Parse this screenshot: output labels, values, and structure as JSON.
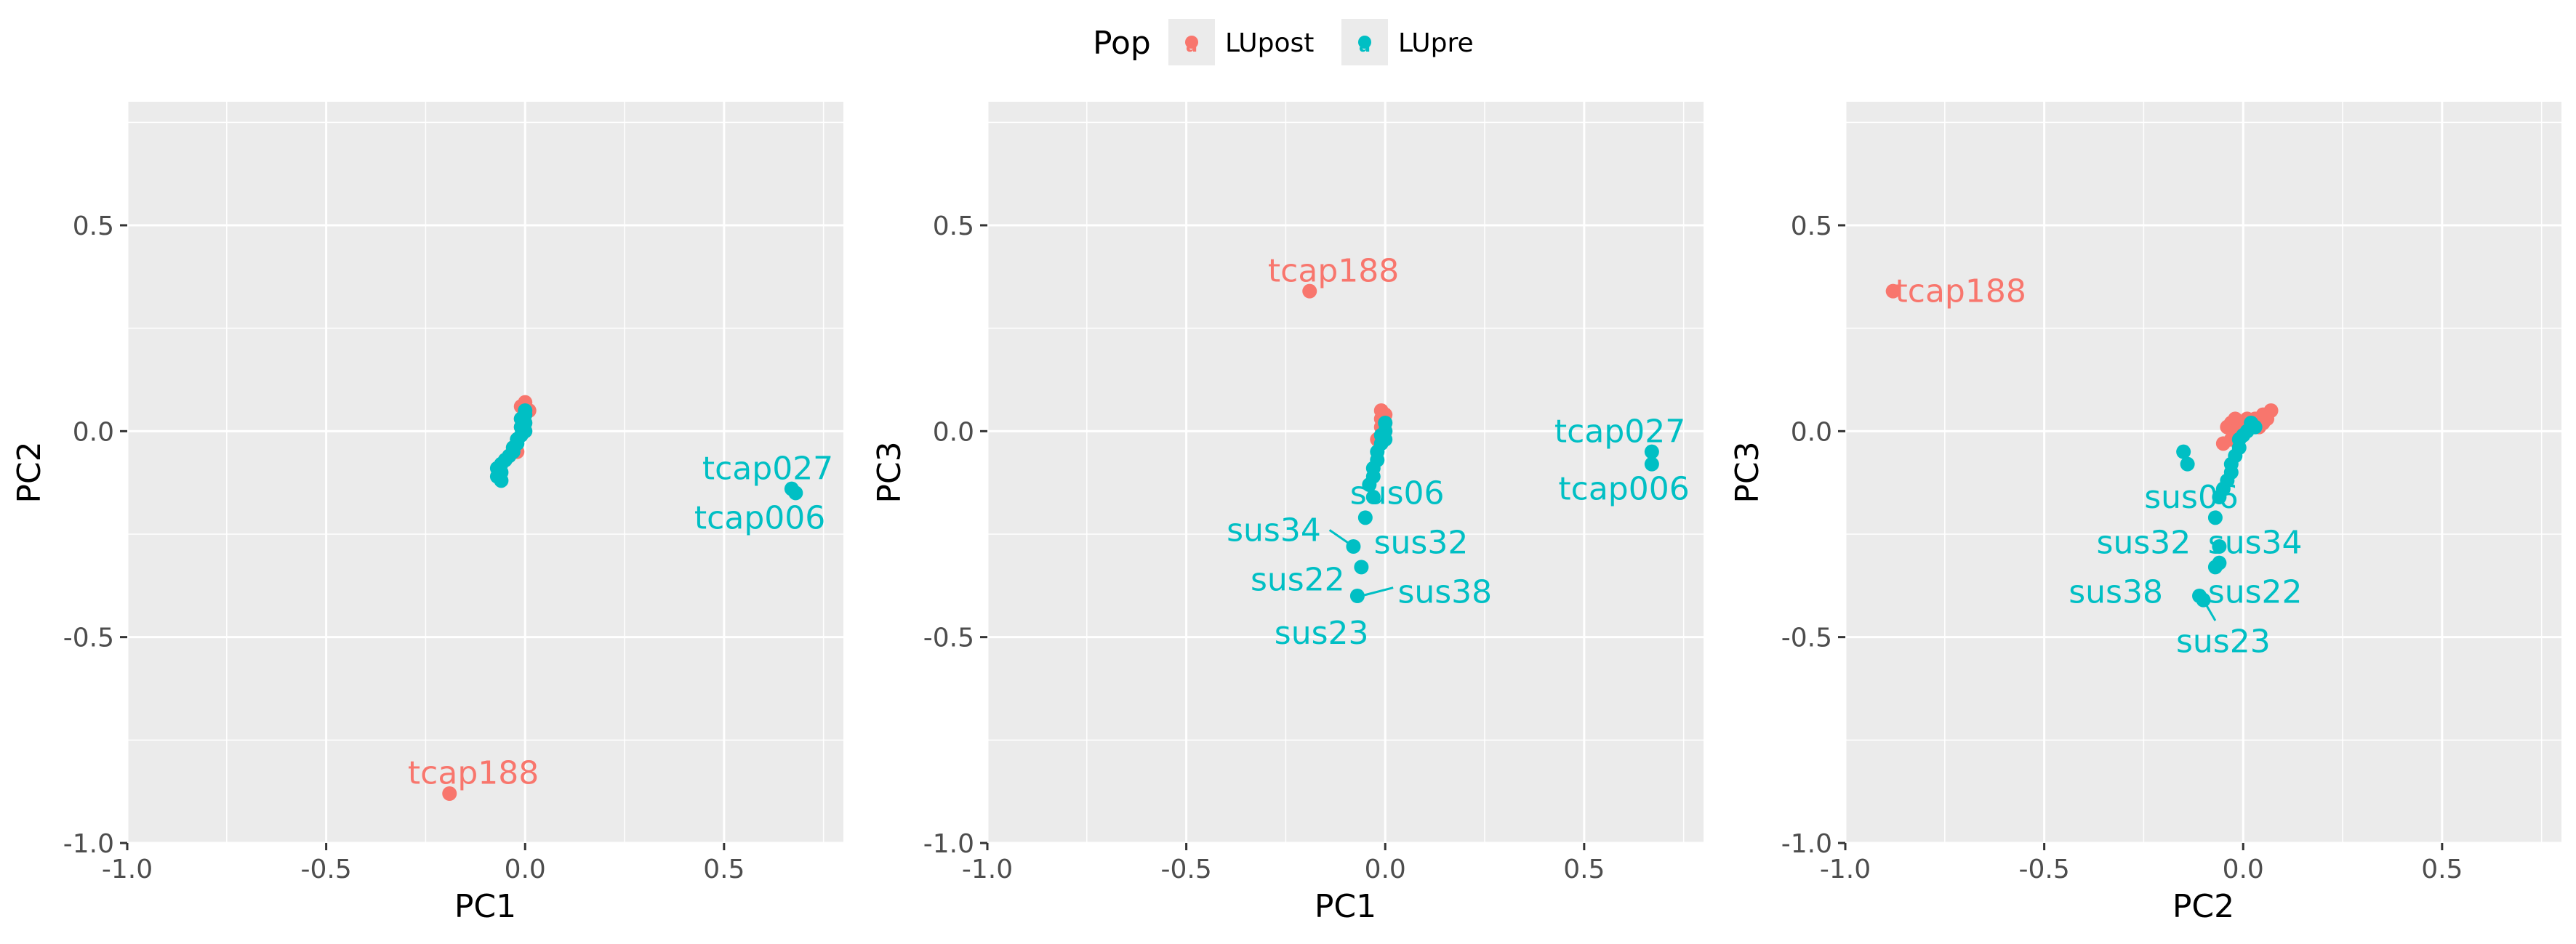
{
  "legend": {
    "title": "Pop",
    "entries": [
      {
        "name": "LUpost",
        "color": "#F8766D",
        "glyph": "a"
      },
      {
        "name": "LUpre",
        "color": "#00BFC4",
        "glyph": "a"
      }
    ],
    "placement": "top-center"
  },
  "chart_data": [
    {
      "type": "scatter",
      "xlabel": "PC1",
      "ylabel": "PC2",
      "xlim": [
        -1.0,
        0.8
      ],
      "ylim": [
        -1.0,
        0.8
      ],
      "xticks": [
        -1.0,
        -0.5,
        0.0,
        0.5
      ],
      "yticks": [
        -1.0,
        -0.5,
        0.0,
        0.5
      ],
      "tick_labels_x": [
        "-1.0",
        "-0.5",
        "0.0",
        "0.5"
      ],
      "tick_labels_y": [
        "-1.0",
        "-0.5",
        "0.0",
        "0.5"
      ],
      "grid": true,
      "series": [
        {
          "name": "LUpost",
          "color": "#F8766D",
          "points": [
            [
              -0.19,
              -0.88
            ],
            [
              0.0,
              0.07
            ],
            [
              -0.01,
              0.06
            ],
            [
              0.01,
              0.05
            ],
            [
              0.0,
              0.04
            ],
            [
              -0.01,
              0.03
            ],
            [
              0.0,
              0.02
            ],
            [
              -0.01,
              0.01
            ],
            [
              0.0,
              0.0
            ],
            [
              -0.02,
              -0.02
            ],
            [
              -0.03,
              -0.04
            ],
            [
              -0.02,
              -0.05
            ],
            [
              -0.04,
              -0.06
            ],
            [
              -0.05,
              -0.07
            ]
          ]
        },
        {
          "name": "LUpre",
          "color": "#00BFC4",
          "points": [
            [
              0.68,
              -0.15
            ],
            [
              0.67,
              -0.14
            ],
            [
              0.0,
              0.05
            ],
            [
              0.0,
              0.04
            ],
            [
              -0.01,
              0.03
            ],
            [
              0.0,
              0.02
            ],
            [
              -0.01,
              0.01
            ],
            [
              0.0,
              0.0
            ],
            [
              -0.01,
              -0.01
            ],
            [
              -0.02,
              -0.02
            ],
            [
              -0.02,
              -0.03
            ],
            [
              -0.03,
              -0.04
            ],
            [
              -0.03,
              -0.05
            ],
            [
              -0.04,
              -0.06
            ],
            [
              -0.05,
              -0.07
            ],
            [
              -0.06,
              -0.08
            ],
            [
              -0.07,
              -0.09
            ],
            [
              -0.06,
              -0.1
            ],
            [
              -0.07,
              -0.11
            ],
            [
              -0.06,
              -0.12
            ]
          ]
        }
      ],
      "annotations": [
        {
          "text": "tcap188",
          "x": -0.13,
          "y": -0.83,
          "series": "LUpost"
        },
        {
          "text": "tcap027",
          "x": 0.61,
          "y": -0.09,
          "series": "LUpre"
        },
        {
          "text": "tcap006",
          "x": 0.59,
          "y": -0.21,
          "series": "LUpre"
        }
      ]
    },
    {
      "type": "scatter",
      "xlabel": "PC1",
      "ylabel": "PC3",
      "xlim": [
        -1.0,
        0.8
      ],
      "ylim": [
        -1.0,
        0.8
      ],
      "xticks": [
        -1.0,
        -0.5,
        0.0,
        0.5
      ],
      "yticks": [
        -1.0,
        -0.5,
        0.0,
        0.5
      ],
      "tick_labels_x": [
        "-1.0",
        "-0.5",
        "0.0",
        "0.5"
      ],
      "tick_labels_y": [
        "-1.0",
        "-0.5",
        "0.0",
        "0.5"
      ],
      "grid": true,
      "series": [
        {
          "name": "LUpost",
          "color": "#F8766D",
          "points": [
            [
              -0.19,
              0.34
            ],
            [
              -0.01,
              0.05
            ],
            [
              0.0,
              0.04
            ],
            [
              -0.01,
              0.03
            ],
            [
              0.0,
              0.02
            ],
            [
              -0.01,
              0.01
            ],
            [
              0.0,
              0.0
            ],
            [
              -0.01,
              -0.01
            ],
            [
              -0.02,
              -0.02
            ]
          ]
        },
        {
          "name": "LUpre",
          "color": "#00BFC4",
          "points": [
            [
              0.67,
              -0.05
            ],
            [
              0.67,
              -0.08
            ],
            [
              0.0,
              0.02
            ],
            [
              0.0,
              0.0
            ],
            [
              -0.01,
              -0.01
            ],
            [
              0.0,
              -0.02
            ],
            [
              -0.01,
              -0.03
            ],
            [
              -0.02,
              -0.05
            ],
            [
              -0.02,
              -0.07
            ],
            [
              -0.03,
              -0.09
            ],
            [
              -0.03,
              -0.11
            ],
            [
              -0.04,
              -0.13
            ],
            [
              -0.03,
              -0.16
            ],
            [
              -0.05,
              -0.21
            ],
            [
              -0.08,
              -0.28
            ],
            [
              -0.06,
              -0.33
            ],
            [
              -0.07,
              -0.4
            ]
          ]
        }
      ],
      "annotations": [
        {
          "text": "tcap188",
          "x": -0.13,
          "y": 0.39,
          "series": "LUpost"
        },
        {
          "text": "tcap027",
          "x": 0.59,
          "y": 0.0,
          "series": "LUpre"
        },
        {
          "text": "tcap006",
          "x": 0.6,
          "y": -0.14,
          "series": "LUpre"
        },
        {
          "text": "sus06",
          "x": 0.03,
          "y": -0.15,
          "series": "LUpre"
        },
        {
          "text": "sus34",
          "x": -0.28,
          "y": -0.24,
          "series": "LUpre"
        },
        {
          "text": "sus32",
          "x": 0.09,
          "y": -0.27,
          "series": "LUpre"
        },
        {
          "text": "sus22",
          "x": -0.22,
          "y": -0.36,
          "series": "LUpre"
        },
        {
          "text": "sus38",
          "x": 0.15,
          "y": -0.39,
          "series": "LUpre"
        },
        {
          "text": "sus23",
          "x": -0.16,
          "y": -0.49,
          "series": "LUpre"
        }
      ],
      "label_lines": [
        {
          "from": [
            -0.14,
            -0.24
          ],
          "to": [
            -0.08,
            -0.28
          ]
        },
        {
          "from": [
            0.02,
            -0.38
          ],
          "to": [
            -0.06,
            -0.4
          ]
        }
      ]
    },
    {
      "type": "scatter",
      "xlabel": "PC2",
      "ylabel": "PC3",
      "xlim": [
        -1.0,
        0.8
      ],
      "ylim": [
        -1.0,
        0.8
      ],
      "xticks": [
        -1.0,
        -0.5,
        0.0,
        0.5
      ],
      "yticks": [
        -1.0,
        -0.5,
        0.0,
        0.5
      ],
      "tick_labels_x": [
        "-1.0",
        "-0.5",
        "0.0",
        "0.5"
      ],
      "tick_labels_y": [
        "-1.0",
        "-0.5",
        "0.0",
        "0.5"
      ],
      "grid": true,
      "series": [
        {
          "name": "LUpost",
          "color": "#F8766D",
          "points": [
            [
              -0.88,
              0.34
            ],
            [
              0.07,
              0.05
            ],
            [
              0.06,
              0.03
            ],
            [
              0.05,
              0.04
            ],
            [
              0.03,
              0.03
            ],
            [
              0.02,
              0.02
            ],
            [
              0.01,
              0.03
            ],
            [
              0.0,
              0.02
            ],
            [
              -0.01,
              0.02
            ],
            [
              -0.02,
              0.03
            ],
            [
              -0.03,
              0.02
            ],
            [
              -0.04,
              0.01
            ],
            [
              -0.02,
              0.0
            ],
            [
              -0.03,
              -0.02
            ],
            [
              -0.05,
              -0.03
            ],
            [
              0.04,
              0.01
            ],
            [
              0.05,
              0.02
            ]
          ]
        },
        {
          "name": "LUpre",
          "color": "#00BFC4",
          "points": [
            [
              -0.15,
              -0.05
            ],
            [
              -0.14,
              -0.08
            ],
            [
              0.02,
              0.02
            ],
            [
              0.01,
              0.0
            ],
            [
              0.0,
              -0.01
            ],
            [
              -0.01,
              -0.02
            ],
            [
              -0.01,
              -0.04
            ],
            [
              -0.02,
              -0.06
            ],
            [
              -0.03,
              -0.08
            ],
            [
              -0.03,
              -0.1
            ],
            [
              -0.04,
              -0.12
            ],
            [
              -0.05,
              -0.14
            ],
            [
              -0.06,
              -0.16
            ],
            [
              -0.07,
              -0.21
            ],
            [
              -0.06,
              -0.28
            ],
            [
              -0.07,
              -0.33
            ],
            [
              -0.11,
              -0.4
            ],
            [
              -0.06,
              -0.32
            ],
            [
              -0.1,
              -0.41
            ],
            [
              0.03,
              0.01
            ]
          ]
        }
      ],
      "annotations": [
        {
          "text": "tcap188",
          "x": -0.71,
          "y": 0.34,
          "series": "LUpost"
        },
        {
          "text": "sus06",
          "x": -0.13,
          "y": -0.16,
          "series": "LUpre"
        },
        {
          "text": "sus32",
          "x": -0.25,
          "y": -0.27,
          "series": "LUpre"
        },
        {
          "text": "sus34",
          "x": 0.03,
          "y": -0.27,
          "series": "LUpre"
        },
        {
          "text": "sus38",
          "x": -0.32,
          "y": -0.39,
          "series": "LUpre"
        },
        {
          "text": "sus22",
          "x": 0.03,
          "y": -0.39,
          "series": "LUpre"
        },
        {
          "text": "sus23",
          "x": -0.05,
          "y": -0.51,
          "series": "LUpre"
        }
      ],
      "label_lines": [
        {
          "from": [
            -0.1,
            -0.41
          ],
          "to": [
            -0.07,
            -0.46
          ]
        }
      ]
    }
  ]
}
